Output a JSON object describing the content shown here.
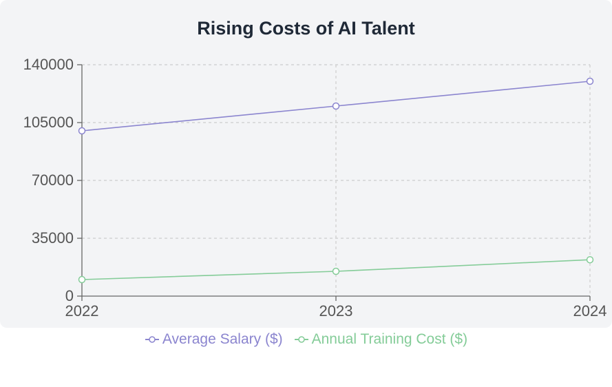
{
  "chart_data": {
    "type": "line",
    "title": "Rising Costs of AI Talent",
    "categories": [
      "2022",
      "2023",
      "2024"
    ],
    "y_ticks": [
      "0",
      "35000",
      "70000",
      "105000",
      "140000"
    ],
    "ylim": [
      0,
      140000
    ],
    "grid": true,
    "legend_position": "bottom",
    "series": [
      {
        "name": "Average Salary ($)",
        "values": [
          100000,
          115000,
          130000
        ],
        "color": "#8b85cf"
      },
      {
        "name": "Annual Training Cost ($)",
        "values": [
          10000,
          15000,
          22000
        ],
        "color": "#84cc98"
      }
    ]
  },
  "colors": {
    "background": "#f3f4f6",
    "axis": "#666666",
    "grid": "#cccccc"
  }
}
